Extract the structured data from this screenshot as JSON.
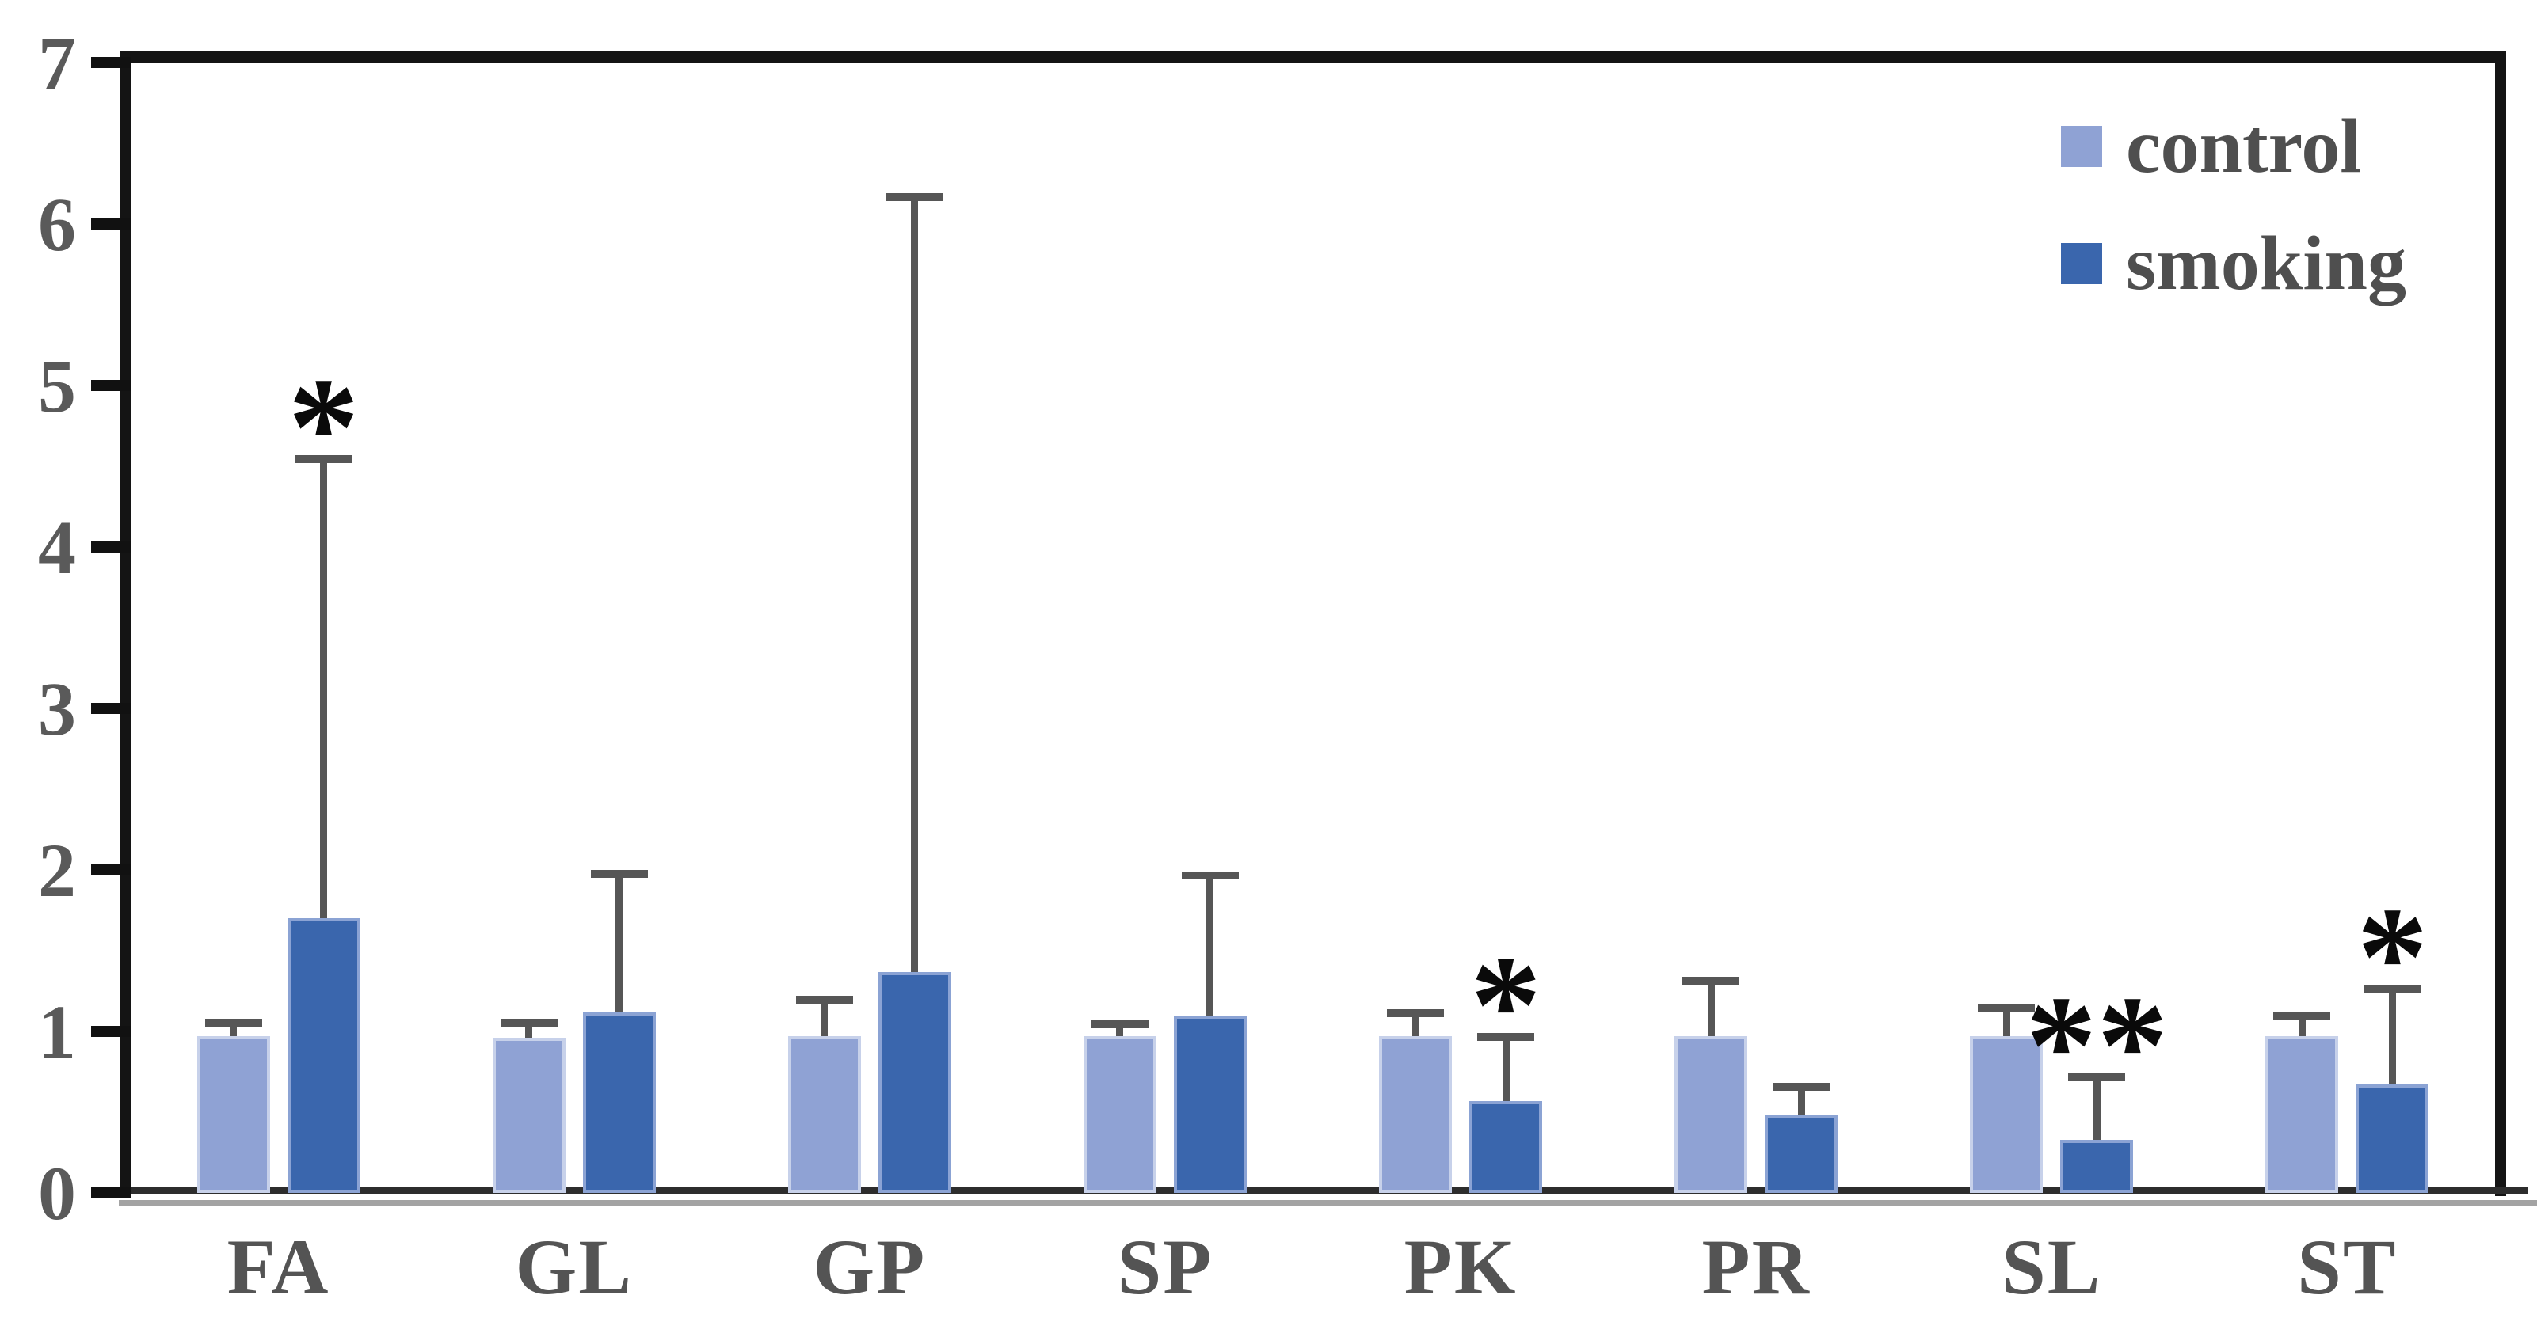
{
  "figure": {
    "type": "grouped bar chart with error bars",
    "background": "#ffffff"
  },
  "legend": {
    "position": "top-right",
    "items": [
      {
        "label": "control",
        "color": "#8fa2d4"
      },
      {
        "label": "smoking",
        "color": "#3a66ad"
      }
    ]
  },
  "y_axis": {
    "min": 0,
    "max": 7,
    "tick_labels": [
      "0",
      "1",
      "2",
      "3",
      "4",
      "5",
      "6",
      "7"
    ]
  },
  "x_axis": {
    "labels": [
      "FA",
      "GL",
      "GP",
      "SP",
      "PK",
      "PR",
      "SL",
      "ST"
    ]
  },
  "chart_data": {
    "type": "bar",
    "categories": [
      "FA",
      "GL",
      "GP",
      "SP",
      "PK",
      "PR",
      "SL",
      "ST"
    ],
    "series": [
      {
        "name": "control",
        "color": "#8fa2d4",
        "edge_color": "#c7d1ea",
        "values": [
          0.97,
          0.96,
          0.97,
          0.97,
          0.97,
          0.97,
          0.97,
          0.97
        ],
        "errors_plus": [
          0.09,
          0.1,
          0.23,
          0.08,
          0.15,
          0.35,
          0.18,
          0.13
        ]
      },
      {
        "name": "smoking",
        "color": "#3a66ad",
        "edge_color": "#8ba3d4",
        "values": [
          1.7,
          1.12,
          1.37,
          1.1,
          0.57,
          0.48,
          0.33,
          0.67
        ],
        "errors_plus": [
          2.85,
          0.86,
          4.8,
          0.87,
          0.4,
          0.18,
          0.39,
          0.6
        ]
      }
    ],
    "significance_markers": [
      "*",
      "",
      "",
      "",
      "*",
      "",
      "**",
      "*"
    ],
    "significance_on_series": "smoking",
    "error_bar_color": "#565656",
    "ylim": [
      0,
      7
    ],
    "yticks": [
      0,
      1,
      2,
      3,
      4,
      5,
      6,
      7
    ],
    "grid": false,
    "legend_position": "top-right",
    "title": "",
    "xlabel": "",
    "ylabel": ""
  }
}
